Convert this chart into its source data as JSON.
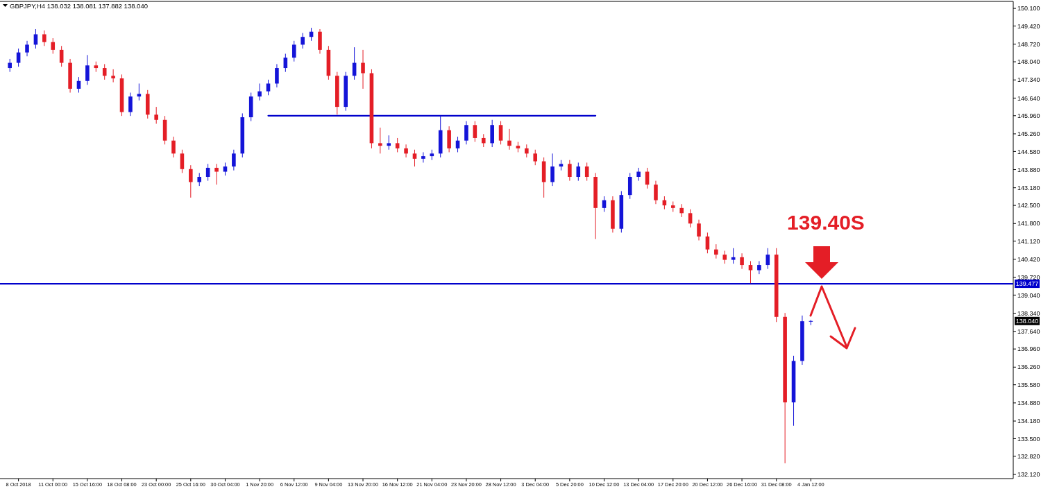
{
  "chart_data": {
    "type": "candlestick",
    "title": "GBPJPY,H4 138.032 138.081 137.882 138.040",
    "categories": [
      null,
      "8 Oct 2018",
      null,
      null,
      null,
      "11 Oct 00:00",
      null,
      null,
      null,
      "15 Oct 16:00",
      null,
      null,
      null,
      "18 Oct 08:00",
      null,
      null,
      null,
      "23 Oct 00:00",
      null,
      null,
      null,
      "25 Oct 16:00",
      null,
      null,
      null,
      "30 Oct 04:00",
      null,
      null,
      null,
      "1 Nov 20:00",
      null,
      null,
      null,
      "6 Nov 12:00",
      null,
      null,
      null,
      "9 Nov 04:00",
      null,
      null,
      null,
      "13 Nov 20:00",
      null,
      null,
      null,
      "16 Nov 12:00",
      null,
      null,
      null,
      "21 Nov 04:00",
      null,
      null,
      null,
      "23 Nov 20:00",
      null,
      null,
      null,
      "28 Nov 12:00",
      null,
      null,
      null,
      "3 Dec 04:00",
      null,
      null,
      null,
      "5 Dec 20:00",
      null,
      null,
      null,
      "10 Dec 12:00",
      null,
      null,
      null,
      "13 Dec 04:00",
      null,
      null,
      null,
      "17 Dec 20:00",
      null,
      null,
      null,
      "20 Dec 12:00",
      null,
      null,
      null,
      "26 Dec 16:00",
      null,
      null,
      null,
      "31 Dec 08:00",
      null,
      null,
      null,
      "4 Jan 12:00",
      null,
      null,
      null,
      null,
      null,
      null,
      null,
      null,
      null,
      null,
      null,
      null,
      null,
      null,
      null,
      null,
      null,
      null,
      null,
      null,
      null,
      null,
      null
    ],
    "ohlc": [
      [
        147.8,
        148.15,
        147.65,
        148.0
      ],
      [
        148.0,
        148.55,
        147.85,
        148.4
      ],
      [
        148.4,
        148.85,
        148.25,
        148.7
      ],
      [
        148.7,
        149.3,
        148.55,
        149.1
      ],
      [
        149.1,
        149.25,
        148.65,
        148.8
      ],
      [
        148.8,
        148.95,
        148.35,
        148.5
      ],
      [
        148.5,
        148.65,
        147.85,
        148.0
      ],
      [
        148.0,
        148.15,
        146.85,
        147.0
      ],
      [
        147.0,
        147.45,
        146.85,
        147.3
      ],
      [
        147.3,
        148.3,
        147.15,
        147.9
      ],
      [
        147.9,
        148.05,
        147.65,
        147.8
      ],
      [
        147.8,
        147.95,
        147.35,
        147.5
      ],
      [
        147.5,
        147.75,
        147.25,
        147.4
      ],
      [
        147.4,
        147.55,
        145.95,
        146.1
      ],
      [
        146.1,
        146.85,
        145.95,
        146.7
      ],
      [
        146.7,
        147.2,
        146.55,
        146.8
      ],
      [
        146.8,
        146.95,
        145.85,
        146.0
      ],
      [
        146.0,
        146.3,
        145.65,
        145.8
      ],
      [
        145.8,
        145.95,
        144.85,
        145.0
      ],
      [
        145.0,
        145.15,
        144.35,
        144.5
      ],
      [
        144.5,
        144.65,
        143.75,
        143.9
      ],
      [
        143.9,
        144.05,
        142.8,
        143.4
      ],
      [
        143.4,
        143.75,
        143.25,
        143.6
      ],
      [
        143.6,
        144.1,
        143.45,
        143.95
      ],
      [
        143.95,
        144.1,
        143.3,
        143.8
      ],
      [
        143.8,
        144.15,
        143.65,
        144.0
      ],
      [
        144.0,
        144.65,
        143.85,
        144.5
      ],
      [
        144.5,
        146.05,
        144.35,
        145.9
      ],
      [
        145.9,
        146.85,
        145.75,
        146.7
      ],
      [
        146.7,
        147.2,
        146.55,
        146.9
      ],
      [
        146.9,
        147.35,
        146.75,
        147.2
      ],
      [
        147.2,
        147.95,
        147.05,
        147.8
      ],
      [
        147.8,
        148.35,
        147.65,
        148.2
      ],
      [
        148.2,
        148.85,
        148.05,
        148.7
      ],
      [
        148.7,
        149.15,
        148.55,
        149.0
      ],
      [
        149.0,
        149.35,
        148.85,
        149.2
      ],
      [
        149.2,
        149.3,
        148.35,
        148.5
      ],
      [
        148.5,
        148.65,
        147.35,
        147.5
      ],
      [
        147.5,
        147.65,
        146.0,
        146.3
      ],
      [
        146.3,
        147.65,
        146.15,
        147.5
      ],
      [
        147.5,
        148.6,
        147.35,
        148.0
      ],
      [
        148.0,
        148.5,
        147.0,
        147.6
      ],
      [
        147.6,
        147.75,
        144.7,
        144.9
      ],
      [
        144.9,
        145.5,
        144.5,
        144.8
      ],
      [
        144.8,
        145.2,
        144.65,
        144.9
      ],
      [
        144.9,
        145.1,
        144.55,
        144.7
      ],
      [
        144.7,
        144.85,
        144.35,
        144.5
      ],
      [
        144.5,
        144.65,
        144.0,
        144.3
      ],
      [
        144.3,
        144.55,
        144.15,
        144.4
      ],
      [
        144.4,
        144.65,
        144.25,
        144.5
      ],
      [
        144.5,
        145.96,
        144.35,
        145.4
      ],
      [
        145.4,
        145.55,
        144.55,
        144.7
      ],
      [
        144.7,
        145.15,
        144.55,
        145.0
      ],
      [
        145.0,
        145.75,
        144.85,
        145.6
      ],
      [
        145.6,
        145.75,
        144.95,
        145.1
      ],
      [
        145.1,
        145.25,
        144.75,
        144.9
      ],
      [
        144.9,
        145.8,
        144.75,
        145.6
      ],
      [
        145.6,
        145.75,
        144.85,
        145.0
      ],
      [
        145.0,
        145.45,
        144.65,
        144.8
      ],
      [
        144.8,
        144.95,
        144.55,
        144.7
      ],
      [
        144.7,
        144.85,
        144.35,
        144.5
      ],
      [
        144.5,
        144.65,
        144.05,
        144.2
      ],
      [
        144.2,
        144.35,
        142.8,
        143.4
      ],
      [
        143.4,
        144.5,
        143.25,
        144.0
      ],
      [
        144.0,
        144.25,
        143.85,
        144.1
      ],
      [
        144.1,
        144.25,
        143.45,
        143.6
      ],
      [
        143.6,
        144.15,
        143.45,
        144.0
      ],
      [
        144.0,
        144.15,
        143.45,
        143.6
      ],
      [
        143.6,
        143.75,
        141.2,
        142.4
      ],
      [
        142.4,
        142.85,
        142.25,
        142.7
      ],
      [
        142.7,
        142.85,
        141.45,
        141.6
      ],
      [
        141.6,
        143.05,
        141.45,
        142.9
      ],
      [
        142.9,
        143.75,
        142.75,
        143.6
      ],
      [
        143.6,
        143.95,
        143.45,
        143.8
      ],
      [
        143.8,
        143.95,
        143.15,
        143.3
      ],
      [
        143.3,
        143.45,
        142.55,
        142.7
      ],
      [
        142.7,
        142.85,
        142.35,
        142.5
      ],
      [
        142.5,
        142.65,
        142.25,
        142.4
      ],
      [
        142.4,
        142.55,
        142.05,
        142.2
      ],
      [
        142.2,
        142.35,
        141.65,
        141.8
      ],
      [
        141.8,
        141.95,
        141.15,
        141.3
      ],
      [
        141.3,
        141.45,
        140.65,
        140.8
      ],
      [
        140.8,
        141.0,
        140.45,
        140.6
      ],
      [
        140.6,
        140.75,
        140.25,
        140.4
      ],
      [
        140.4,
        140.85,
        140.25,
        140.5
      ],
      [
        140.5,
        140.65,
        140.05,
        140.2
      ],
      [
        140.2,
        140.35,
        139.5,
        140.0
      ],
      [
        140.0,
        140.35,
        139.85,
        140.2
      ],
      [
        140.2,
        140.85,
        140.05,
        140.6
      ],
      [
        140.6,
        140.85,
        138.0,
        138.2
      ],
      [
        138.2,
        138.35,
        132.55,
        134.9
      ],
      [
        134.9,
        136.7,
        134.0,
        136.5
      ],
      [
        136.5,
        138.25,
        136.35,
        138.03
      ],
      [
        138.032,
        138.081,
        137.882,
        138.04
      ],
      null,
      null,
      null,
      null,
      null,
      null,
      null,
      null,
      null,
      null,
      null,
      null,
      null,
      null,
      null,
      null,
      null,
      null,
      null,
      null,
      null,
      null,
      null
    ],
    "series": [
      {
        "type": "line",
        "color": "#0000cc",
        "values": [
          null,
          null,
          null,
          null,
          null,
          null,
          null,
          null,
          null,
          null,
          null,
          null,
          null,
          null,
          null,
          null,
          null,
          null,
          null,
          null,
          null,
          null,
          null,
          null,
          null,
          null,
          null,
          null,
          null,
          null,
          145.96,
          145.96,
          145.96,
          145.96,
          145.96,
          145.96,
          145.96,
          145.96,
          145.96,
          145.96,
          145.96,
          145.96,
          145.96,
          145.96,
          145.96,
          145.96,
          145.96,
          145.96,
          145.96,
          145.96,
          145.96,
          145.96,
          145.96,
          145.96,
          145.96,
          145.96,
          145.96,
          145.96,
          145.96,
          145.96,
          145.96,
          145.96,
          145.96,
          145.96,
          145.96,
          145.96,
          145.96,
          145.96,
          145.96,
          null,
          null,
          null,
          null,
          null,
          null,
          null,
          null,
          null,
          null,
          null,
          null,
          null,
          null,
          null,
          null,
          null,
          null,
          null,
          null,
          null,
          null,
          null,
          null,
          null,
          null,
          null,
          null,
          null,
          null,
          null,
          null,
          null,
          null,
          null,
          null,
          null,
          null,
          null,
          null,
          null,
          null,
          null,
          null,
          null,
          null,
          null,
          null
        ]
      }
    ],
    "ylim": [
      131.96,
      150.37
    ],
    "yticks": [
      {
        "value": 150.1,
        "label": "150.100"
      },
      {
        "value": 149.42,
        "label": "149.420"
      },
      {
        "value": 148.72,
        "label": "148.720"
      },
      {
        "value": 148.04,
        "label": "148.040"
      },
      {
        "value": 147.34,
        "label": "147.340"
      },
      {
        "value": 146.64,
        "label": "146.640"
      },
      {
        "value": 145.96,
        "label": "145.960"
      },
      {
        "value": 145.26,
        "label": "145.260"
      },
      {
        "value": 144.58,
        "label": "144.580"
      },
      {
        "value": 143.88,
        "label": "143.880"
      },
      {
        "value": 143.18,
        "label": "143.180"
      },
      {
        "value": 142.5,
        "label": "142.500"
      },
      {
        "value": 141.8,
        "label": "141.800"
      },
      {
        "value": 141.12,
        "label": "141.120"
      },
      {
        "value": 140.42,
        "label": "140.420"
      },
      {
        "value": 139.72,
        "label": "139.720"
      },
      {
        "value": 139.04,
        "label": "139.040"
      },
      {
        "value": 138.34,
        "label": "138.340"
      },
      {
        "value": 137.64,
        "label": "137.640"
      },
      {
        "value": 136.96,
        "label": "136.960"
      },
      {
        "value": 136.26,
        "label": "136.260"
      },
      {
        "value": 135.58,
        "label": "135.580"
      },
      {
        "value": 134.88,
        "label": "134.880"
      },
      {
        "value": 134.18,
        "label": "134.180"
      },
      {
        "value": 133.5,
        "label": "133.500"
      },
      {
        "value": 132.82,
        "label": "132.820"
      },
      {
        "value": 132.12,
        "label": "132.120"
      }
    ],
    "ref_lines": [
      {
        "axis": "y",
        "value": 139.477,
        "label": "139.477",
        "color": "#0000cc"
      }
    ],
    "annotations": [
      {
        "text": "138.040",
        "y": 138.04
      },
      "139.40S"
    ]
  }
}
